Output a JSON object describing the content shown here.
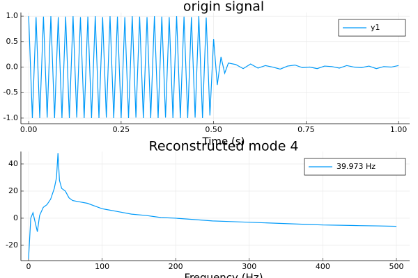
{
  "chart_data": [
    {
      "type": "line",
      "title": "origin signal",
      "xlabel": "Time (s)",
      "x": [
        0,
        0.01,
        0.02,
        0.03,
        0.04,
        0.05,
        0.06,
        0.07,
        0.08,
        0.09,
        0.1,
        0.11,
        0.12,
        0.13,
        0.14,
        0.15,
        0.16,
        0.17,
        0.18,
        0.19,
        0.2,
        0.21,
        0.22,
        0.23,
        0.24,
        0.25,
        0.26,
        0.27,
        0.28,
        0.29,
        0.3,
        0.31,
        0.32,
        0.33,
        0.34,
        0.35,
        0.36,
        0.37,
        0.38,
        0.39,
        0.4,
        0.41,
        0.42,
        0.43,
        0.44,
        0.45,
        0.46,
        0.47,
        0.48,
        0.49,
        0.5,
        0.51,
        0.52,
        0.53,
        0.54,
        0.56,
        0.58,
        0.6,
        0.62,
        0.64,
        0.66,
        0.68,
        0.7,
        0.72,
        0.74,
        0.76,
        0.78,
        0.8,
        0.82,
        0.84,
        0.86,
        0.88,
        0.9,
        0.92,
        0.94,
        0.96,
        0.98,
        1.0
      ],
      "series": [
        {
          "name": "y1",
          "color": "#009af9",
          "values": [
            1,
            -1,
            0.98,
            -1,
            0.99,
            -0.99,
            1,
            -1,
            0.98,
            -1,
            0.99,
            -1,
            1,
            -0.99,
            0.98,
            -1,
            0.99,
            -1,
            1,
            -1,
            0.98,
            -0.99,
            1,
            -1,
            0.99,
            -1,
            0.98,
            -1,
            1,
            -0.99,
            0.99,
            -1,
            0.98,
            -1,
            1,
            -1,
            0.99,
            -0.99,
            0.98,
            -1,
            1,
            -1,
            0.99,
            -1,
            0.98,
            -0.99,
            1,
            -1,
            0.97,
            -0.95,
            0.55,
            -0.35,
            0.2,
            -0.12,
            0.08,
            0.05,
            -0.03,
            0.06,
            -0.02,
            0.03,
            0,
            -0.04,
            0.02,
            0.04,
            -0.01,
            0,
            -0.03,
            0.02,
            0.01,
            -0.02,
            0.03,
            0,
            -0.01,
            0.02,
            -0.03,
            0.01,
            0,
            0.03
          ]
        }
      ],
      "xlim": [
        -0.021,
        1.03
      ],
      "ylim": [
        -1.11,
        1.07
      ],
      "xticks": [
        {
          "value": 0,
          "label": "0.00"
        },
        {
          "value": 0.25,
          "label": "0.25"
        },
        {
          "value": 0.5,
          "label": "0.50"
        },
        {
          "value": 0.75,
          "label": "0.75"
        },
        {
          "value": 1,
          "label": "1.00"
        }
      ],
      "yticks": [
        {
          "value": -1,
          "label": "-1.0"
        },
        {
          "value": -0.5,
          "label": "-0.5"
        },
        {
          "value": 0,
          "label": "0.0"
        },
        {
          "value": 0.5,
          "label": "0.5"
        },
        {
          "value": 1,
          "label": "1.0"
        }
      ],
      "grid": true,
      "legend": "top-right"
    },
    {
      "type": "line",
      "title": "Reconstructed mode 4",
      "xlabel": "Frequency (Hz)",
      "x": [
        0,
        3,
        6,
        9,
        12,
        15,
        20,
        25,
        30,
        35,
        38,
        40,
        42,
        45,
        50,
        55,
        60,
        70,
        80,
        90,
        100,
        110,
        120,
        140,
        160,
        180,
        200,
        225,
        250,
        275,
        300,
        325,
        350,
        375,
        400,
        425,
        450,
        475,
        500
      ],
      "series": [
        {
          "name": "39.973 Hz",
          "color": "#009af9",
          "values": [
            -30,
            0,
            4,
            -3,
            -10,
            2,
            8,
            10,
            14,
            22,
            30,
            48,
            28,
            22,
            20,
            15,
            13,
            12,
            11,
            9,
            7,
            6,
            5,
            3,
            2,
            0.5,
            0,
            -1,
            -2,
            -2.5,
            -3,
            -3.5,
            -4,
            -4.5,
            -5,
            -5.2,
            -5.5,
            -5.7,
            -6
          ]
        }
      ],
      "xlim": [
        -10.4,
        518
      ],
      "ylim": [
        -31.3,
        49.2
      ],
      "xticks": [
        0,
        100,
        200,
        300,
        400,
        500
      ],
      "yticks": [
        -20,
        0,
        20,
        40
      ],
      "grid": true,
      "legend": "top-right"
    }
  ]
}
